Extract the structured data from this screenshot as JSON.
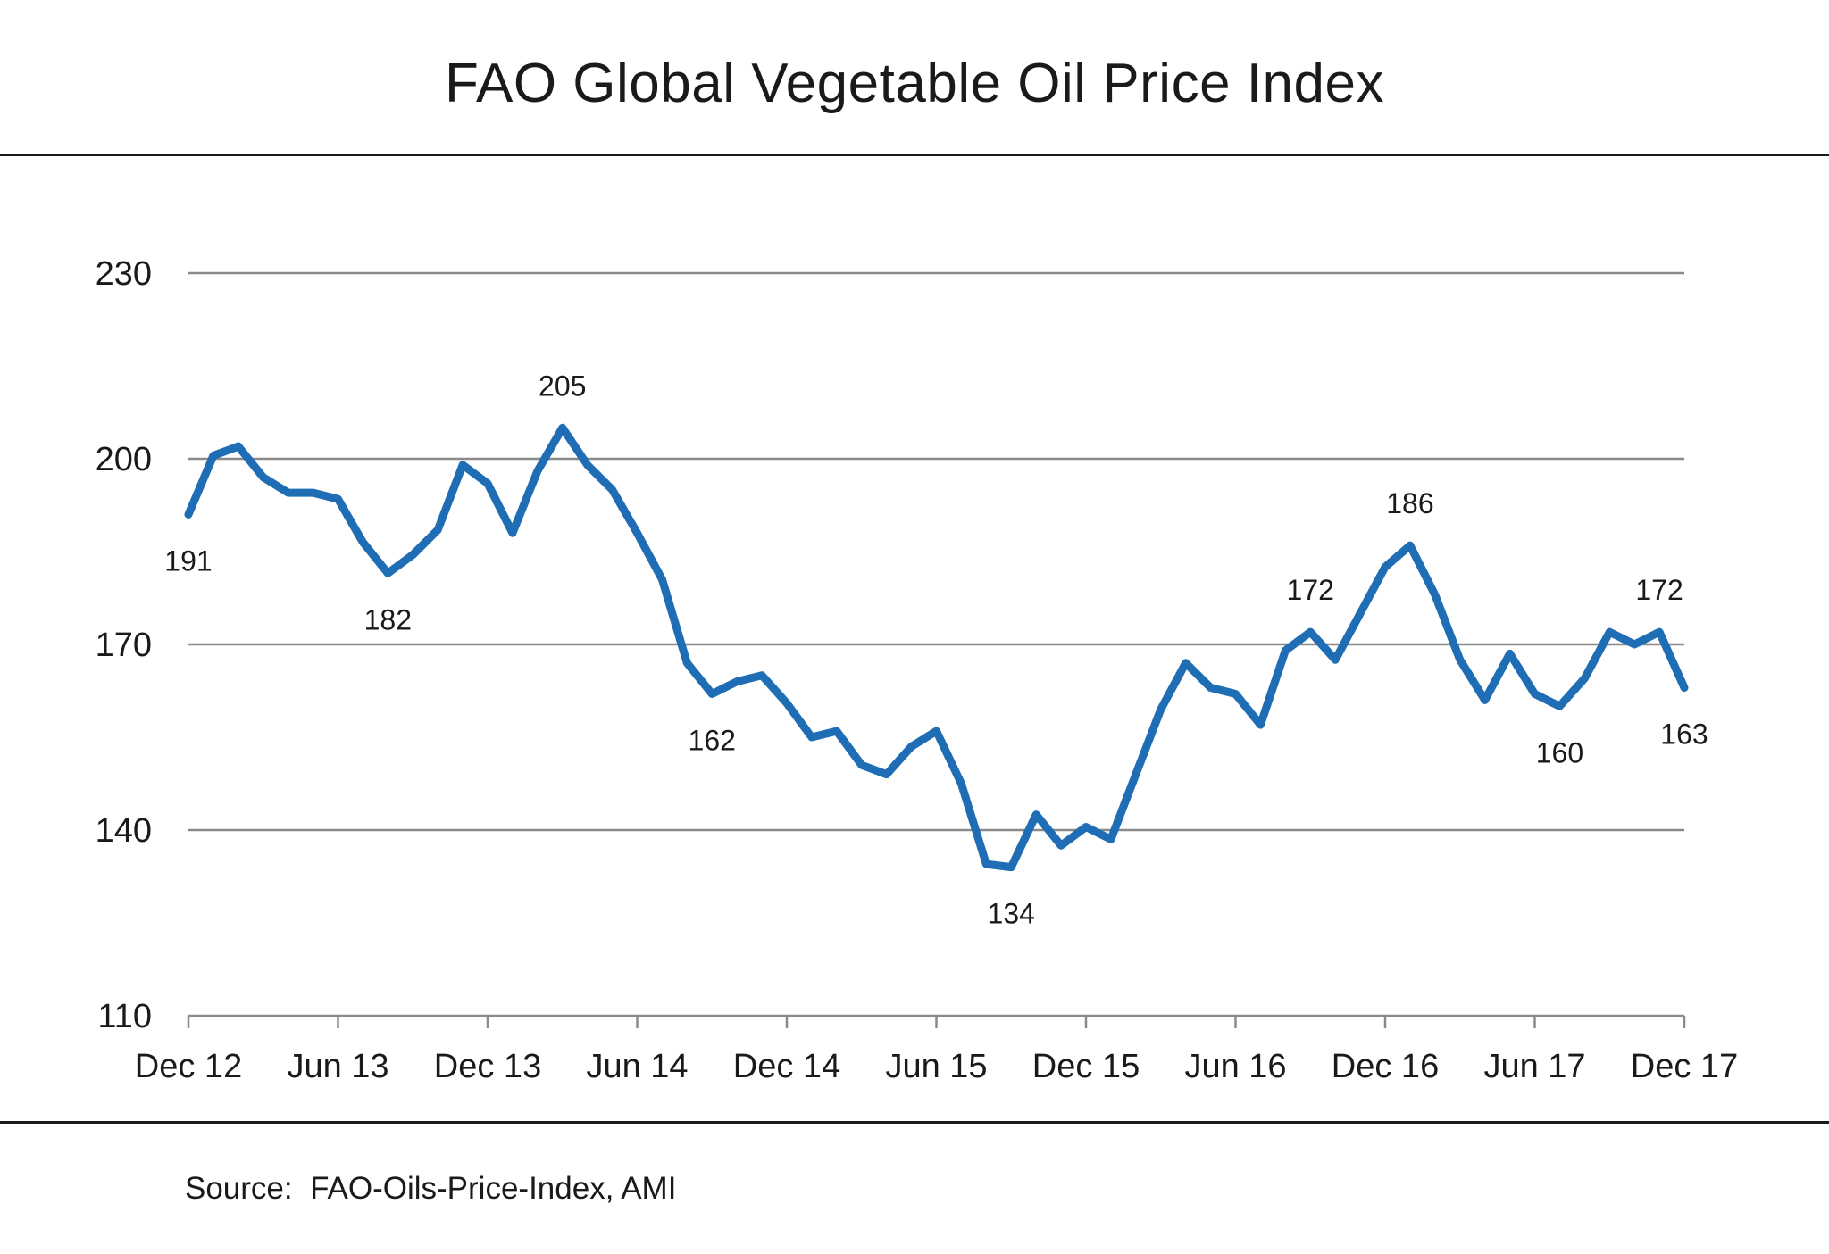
{
  "chart_data": {
    "type": "line",
    "title": "FAO Global  Vegetable Oil Price Index",
    "source": "Source:  FAO-Oils-Price-Index, AMI",
    "xlabel": "",
    "ylabel": "",
    "ylim": [
      110,
      230
    ],
    "yticks": [
      110,
      140,
      170,
      200,
      230
    ],
    "grid": true,
    "legend": "none",
    "colors": {
      "line": "#1f6db4",
      "grid": "#8a8a8a",
      "axis": "#8a8a8a",
      "text": "#1a1a1a"
    },
    "xticks": [
      "Dec 12",
      "Jun 13",
      "Dec 13",
      "Jun 14",
      "Dec 14",
      "Jun 15",
      "Dec 15",
      "Jun 16",
      "Dec 16",
      "Jun 17",
      "Dec 17"
    ],
    "series": [
      {
        "values": [
          191,
          200.5,
          202,
          197,
          194.5,
          194.5,
          193.5,
          186.5,
          181.5,
          184.5,
          188.5,
          199,
          196,
          188,
          198,
          205,
          199,
          195,
          188,
          180.5,
          167,
          162,
          164,
          165,
          160.5,
          155,
          156,
          150.5,
          149,
          153.5,
          156,
          147.5,
          134.5,
          134,
          142.5,
          137.5,
          140.5,
          138.5,
          149,
          159.5,
          167,
          163,
          162,
          157,
          169,
          172,
          167.5,
          175,
          182.5,
          186,
          178,
          167.5,
          161,
          168.5,
          162,
          160,
          164.5,
          172,
          170,
          172,
          163
        ]
      }
    ],
    "annotations": [
      {
        "text": "191",
        "index": 0,
        "position": "below"
      },
      {
        "text": "182",
        "index": 8,
        "position": "below"
      },
      {
        "text": "205",
        "index": 15,
        "position": "above"
      },
      {
        "text": "162",
        "index": 21,
        "position": "below"
      },
      {
        "text": "134",
        "index": 33,
        "position": "below"
      },
      {
        "text": "172",
        "index": 45,
        "position": "above"
      },
      {
        "text": "186",
        "index": 49,
        "position": "above"
      },
      {
        "text": "160",
        "index": 55,
        "position": "below"
      },
      {
        "text": "172",
        "index": 59,
        "position": "above"
      },
      {
        "text": "163",
        "index": 60,
        "position": "below"
      }
    ]
  }
}
